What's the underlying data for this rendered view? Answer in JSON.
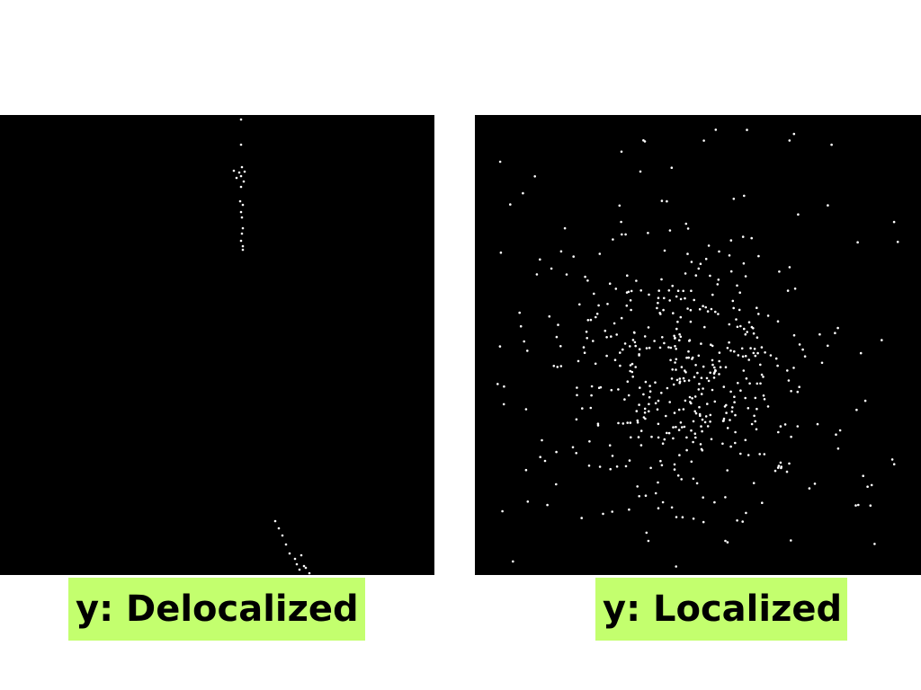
{
  "panels": [
    {
      "caption": "y: Delocalized",
      "pattern": "delocalized"
    },
    {
      "caption": "y: Localized",
      "pattern": "localized"
    }
  ],
  "colors": {
    "page_background": "#ffffff",
    "panel_background": "#000000",
    "dot": "#ffffff",
    "caption_highlight": "#c3ff6e",
    "caption_text": "#000000"
  }
}
